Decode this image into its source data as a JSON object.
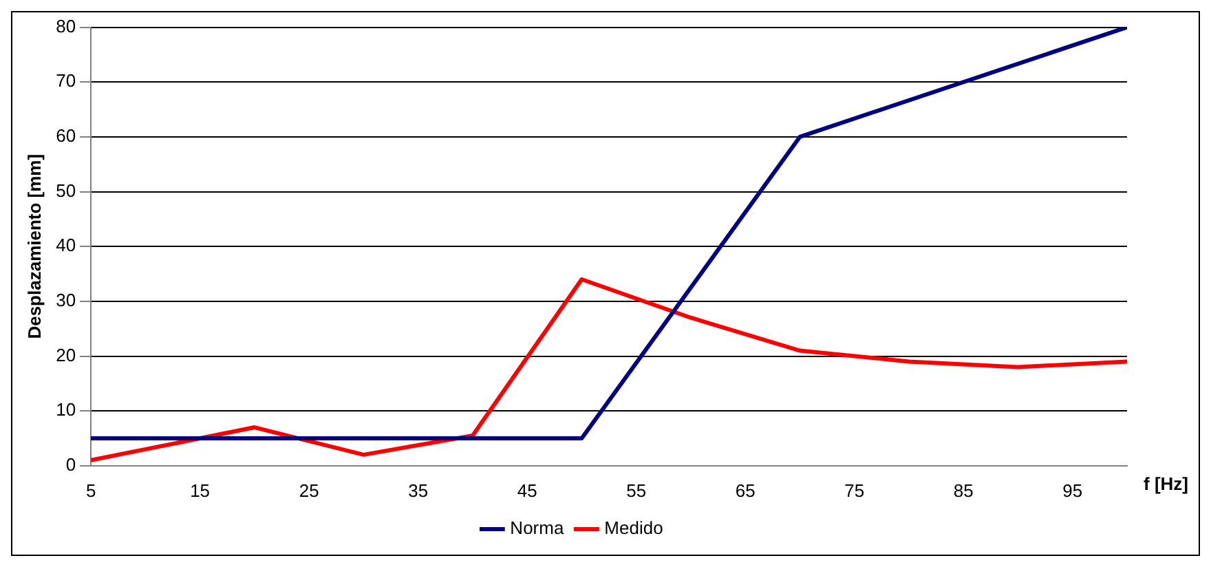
{
  "chart_data": {
    "type": "line",
    "xlabel": "f [Hz]",
    "ylabel": "Desplazamiento [mm]",
    "xlim": [
      5,
      100
    ],
    "xticks": [
      5,
      15,
      25,
      35,
      45,
      55,
      65,
      75,
      85,
      95
    ],
    "ylim": [
      0,
      80
    ],
    "yticks": [
      0,
      10,
      20,
      30,
      40,
      50,
      60,
      70,
      80
    ],
    "grid": "y",
    "legend": "bottom",
    "marker": "none",
    "line_style": "solid",
    "series": [
      {
        "name": "Norma",
        "color": "#000080",
        "x": [
          5,
          50,
          70,
          100
        ],
        "values": [
          5,
          5,
          60,
          80
        ]
      },
      {
        "name": "Medido",
        "color": "#ff0000",
        "x": [
          5,
          20,
          30,
          40,
          50,
          60,
          70,
          80,
          90,
          100
        ],
        "values": [
          1,
          7,
          2,
          5.5,
          34,
          27,
          21,
          19,
          18,
          19
        ]
      }
    ]
  }
}
